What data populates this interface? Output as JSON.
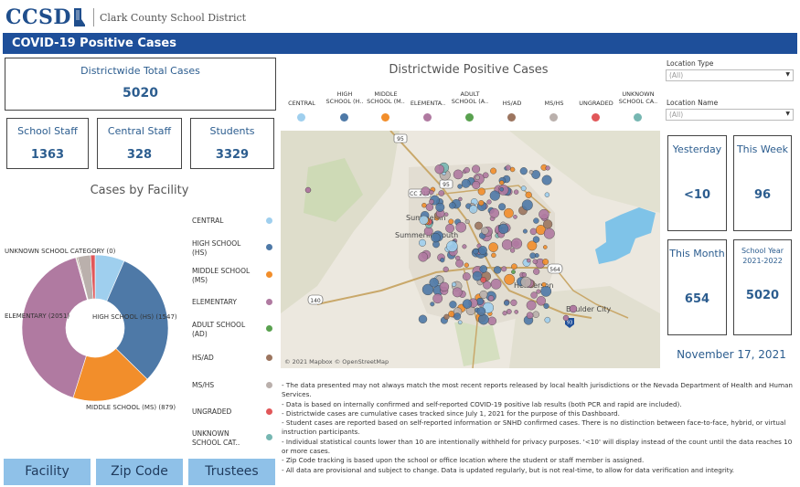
{
  "header": {
    "logo_text": "CCSD",
    "district_name": "Clark County School District",
    "title": "COVID-19 Positive Cases"
  },
  "totals": {
    "districtwide_label": "Districtwide Total Cases",
    "districtwide_value": "5020",
    "school_staff_label": "School Staff",
    "school_staff_value": "1363",
    "central_staff_label": "Central Staff",
    "central_staff_value": "328",
    "students_label": "Students",
    "students_value": "3329"
  },
  "facility_chart": {
    "title": "Cases by Facility",
    "labels": {
      "unknown": "UNKNOWN SCHOOL CATEGORY (0)",
      "elementary": "ELEMENTARY (2051)",
      "high": "HIGH SCHOOL (HS) (1547)",
      "middle": "MIDDLE SCHOOL (MS) (879)"
    }
  },
  "chart_data": {
    "type": "pie",
    "title": "Cases by Facility",
    "categories": [
      "CENTRAL",
      "HIGH SCHOOL (HS)",
      "MIDDLE SCHOOL (MS)",
      "ELEMENTARY",
      "ADULT SCHOOL (AD)",
      "HS/AD",
      "MS/HS",
      "UNGRADED",
      "UNKNOWN SCHOOL CATEGORY"
    ],
    "values": [
      328,
      1547,
      879,
      2051,
      8,
      12,
      145,
      50,
      0
    ],
    "colors": [
      "#9fcfee",
      "#4e79a7",
      "#f28e2b",
      "#b07aa1",
      "#59a14f",
      "#9c755f",
      "#bab0ac",
      "#e15759",
      "#76b7b2"
    ]
  },
  "facility_legend": [
    {
      "label": "CENTRAL",
      "color": "#9fcfee"
    },
    {
      "label": "HIGH SCHOOL (HS)",
      "color": "#4e79a7"
    },
    {
      "label": "MIDDLE SCHOOL (MS)",
      "color": "#f28e2b"
    },
    {
      "label": "ELEMENTARY",
      "color": "#b07aa1"
    },
    {
      "label": "ADULT SCHOOL (AD)",
      "color": "#59a14f"
    },
    {
      "label": "HS/AD",
      "color": "#9c755f"
    },
    {
      "label": "MS/HS",
      "color": "#bab0ac"
    },
    {
      "label": "UNGRADED",
      "color": "#e15759"
    },
    {
      "label": "UNKNOWN SCHOOL CAT..",
      "color": "#76b7b2"
    }
  ],
  "map_section": {
    "title": "Districtwide Positive Cases",
    "categories": [
      {
        "label": "CENTRAL",
        "color": "#9fcfee"
      },
      {
        "label": "HIGH SCHOOL (H..",
        "color": "#4e79a7"
      },
      {
        "label": "MIDDLE SCHOOL (M..",
        "color": "#f28e2b"
      },
      {
        "label": "ELEMENTA..",
        "color": "#b07aa1"
      },
      {
        "label": "ADULT SCHOOL (A..",
        "color": "#59a14f"
      },
      {
        "label": "HS/AD",
        "color": "#9c755f"
      },
      {
        "label": "MS/HS",
        "color": "#bab0ac"
      },
      {
        "label": "UNGRADED",
        "color": "#e15759"
      },
      {
        "label": "UNKNOWN SCHOOL CA..",
        "color": "#76b7b2"
      }
    ],
    "attribution": "© 2021 Mapbox  © OpenStreetMap",
    "place_labels": [
      "Summerlin",
      "Summerlin South",
      "Henderson",
      "Boulder City"
    ],
    "road_labels": [
      "95",
      "CC 215",
      "95",
      "140",
      "564",
      "93"
    ]
  },
  "filters": {
    "location_type_label": "Location Type",
    "location_type_value": "(All)",
    "location_name_label": "Location Name",
    "location_name_value": "(All)"
  },
  "periods": {
    "yesterday_label": "Yesterday",
    "yesterday_value": "<10",
    "this_week_label": "This Week",
    "this_week_value": "96",
    "this_month_label": "This Month",
    "this_month_value": "654",
    "school_year_label": "School Year 2021-2022",
    "school_year_value": "5020"
  },
  "date": "November 17, 2021",
  "nav": {
    "facility": "Facility",
    "zip_code": "Zip Code",
    "trustees": "Trustees"
  },
  "notes": [
    "- The data presented may not always match the most recent reports released by local health jurisdictions or the Nevada Department of Health and Human Services.",
    "- Data is based on internally confirmed and self-reported COVID-19 positive lab results (both PCR and rapid are included).",
    "- Districtwide cases are cumulative cases tracked since July 1, 2021 for the purpose of this Dashboard.",
    "- Student cases are reported based on self-reported information or SNHD confirmed cases. There is no distinction between face-to-face, hybrid, or virtual instruction participants.",
    "- Individual statistical counts lower than 10 are intentionally withheld for privacy purposes. '<10' will display instead of the count until the data reaches 10 or more cases.",
    "- Zip Code tracking is based upon the school or office location where the student or staff member is assigned.",
    "- All data are provisional and subject to change. Data is updated regularly, but is not real-time, to allow for data verification and integrity."
  ]
}
